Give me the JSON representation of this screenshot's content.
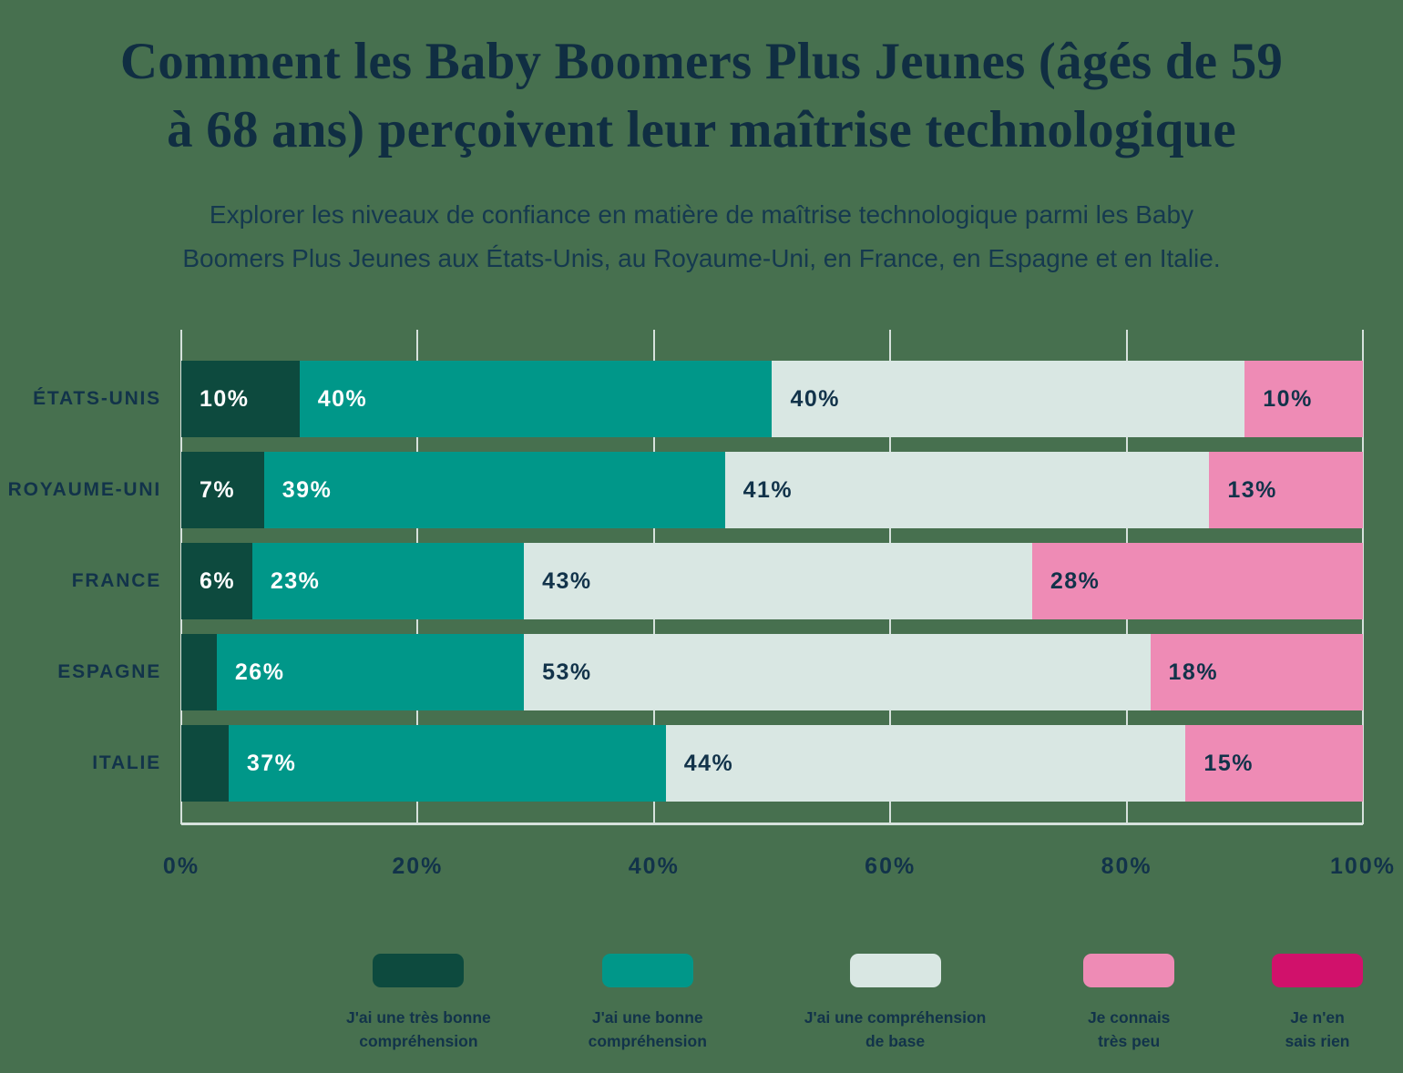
{
  "header": {
    "title_lines": [
      "Comment les Baby Boomers Plus Jeunes (âgés de 59",
      "à 68 ans) perçoivent leur maîtrise technologique"
    ],
    "subtitle_lines": [
      "Explorer les niveaux de confiance en matière de maîtrise technologique parmi les Baby",
      "Boomers Plus Jeunes aux États-Unis, au Royaume-Uni, en France, en Espagne et en Italie."
    ]
  },
  "colors": {
    "background": "#47704F",
    "title_navy": "#102E42",
    "text_navy": "#12334A",
    "gridline": "#D6E1DC",
    "label_on_dark": "#FFFFFF"
  },
  "chart_data": {
    "type": "bar",
    "stacked": true,
    "orientation": "horizontal",
    "title": "Comment les Baby Boomers Plus Jeunes (âgés de 59 à 68 ans) perçoivent leur maîtrise technologique",
    "categories": [
      "ÉTATS-UNIS",
      "ROYAUME-UNI",
      "FRANCE",
      "ESPAGNE",
      "ITALIE"
    ],
    "series": [
      {
        "name": "J'ai une très bonne compréhension",
        "legend_lines": [
          "J'ai une très bonne",
          "compréhension"
        ],
        "color": "#0D4A3E",
        "label_color": "#FFFFFF",
        "values": [
          10,
          7,
          6,
          3,
          4
        ],
        "labels": [
          "10%",
          "7%",
          "6%",
          "",
          ""
        ]
      },
      {
        "name": "J'ai une bonne compréhension",
        "legend_lines": [
          "J'ai une bonne",
          "compréhension"
        ],
        "color": "#009789",
        "label_color": "#FFFFFF",
        "values": [
          40,
          39,
          23,
          26,
          37
        ],
        "labels": [
          "40%",
          "39%",
          "23%",
          "26%",
          "37%"
        ]
      },
      {
        "name": "J'ai une compréhension de base",
        "legend_lines": [
          "J'ai une compréhension",
          "de base"
        ],
        "color": "#D9E7E3",
        "label_color": "#12334A",
        "values": [
          40,
          41,
          43,
          53,
          44
        ],
        "labels": [
          "40%",
          "41%",
          "43%",
          "53%",
          "44%"
        ]
      },
      {
        "name": "Je connais très peu",
        "legend_lines": [
          "Je connais",
          "très peu"
        ],
        "color": "#EE8BB5",
        "label_color": "#12334A",
        "values": [
          10,
          13,
          28,
          18,
          15
        ],
        "labels": [
          "10%",
          "13%",
          "28%",
          "18%",
          "15%"
        ]
      },
      {
        "name": "Je n'en sais rien",
        "legend_lines": [
          "Je n'en",
          "sais rien"
        ],
        "color": "#D1116B",
        "label_color": "#FFFFFF",
        "values": [
          0,
          0,
          0,
          0,
          0
        ],
        "labels": [
          "",
          "",
          "",
          "",
          ""
        ]
      }
    ],
    "xlim": [
      0,
      100
    ],
    "tick_values": [
      0,
      20,
      40,
      60,
      80,
      100
    ],
    "tick_labels": [
      "0%",
      "20%",
      "40%",
      "60%",
      "80%",
      "100%"
    ],
    "grid": true,
    "legend_position": "bottom"
  }
}
